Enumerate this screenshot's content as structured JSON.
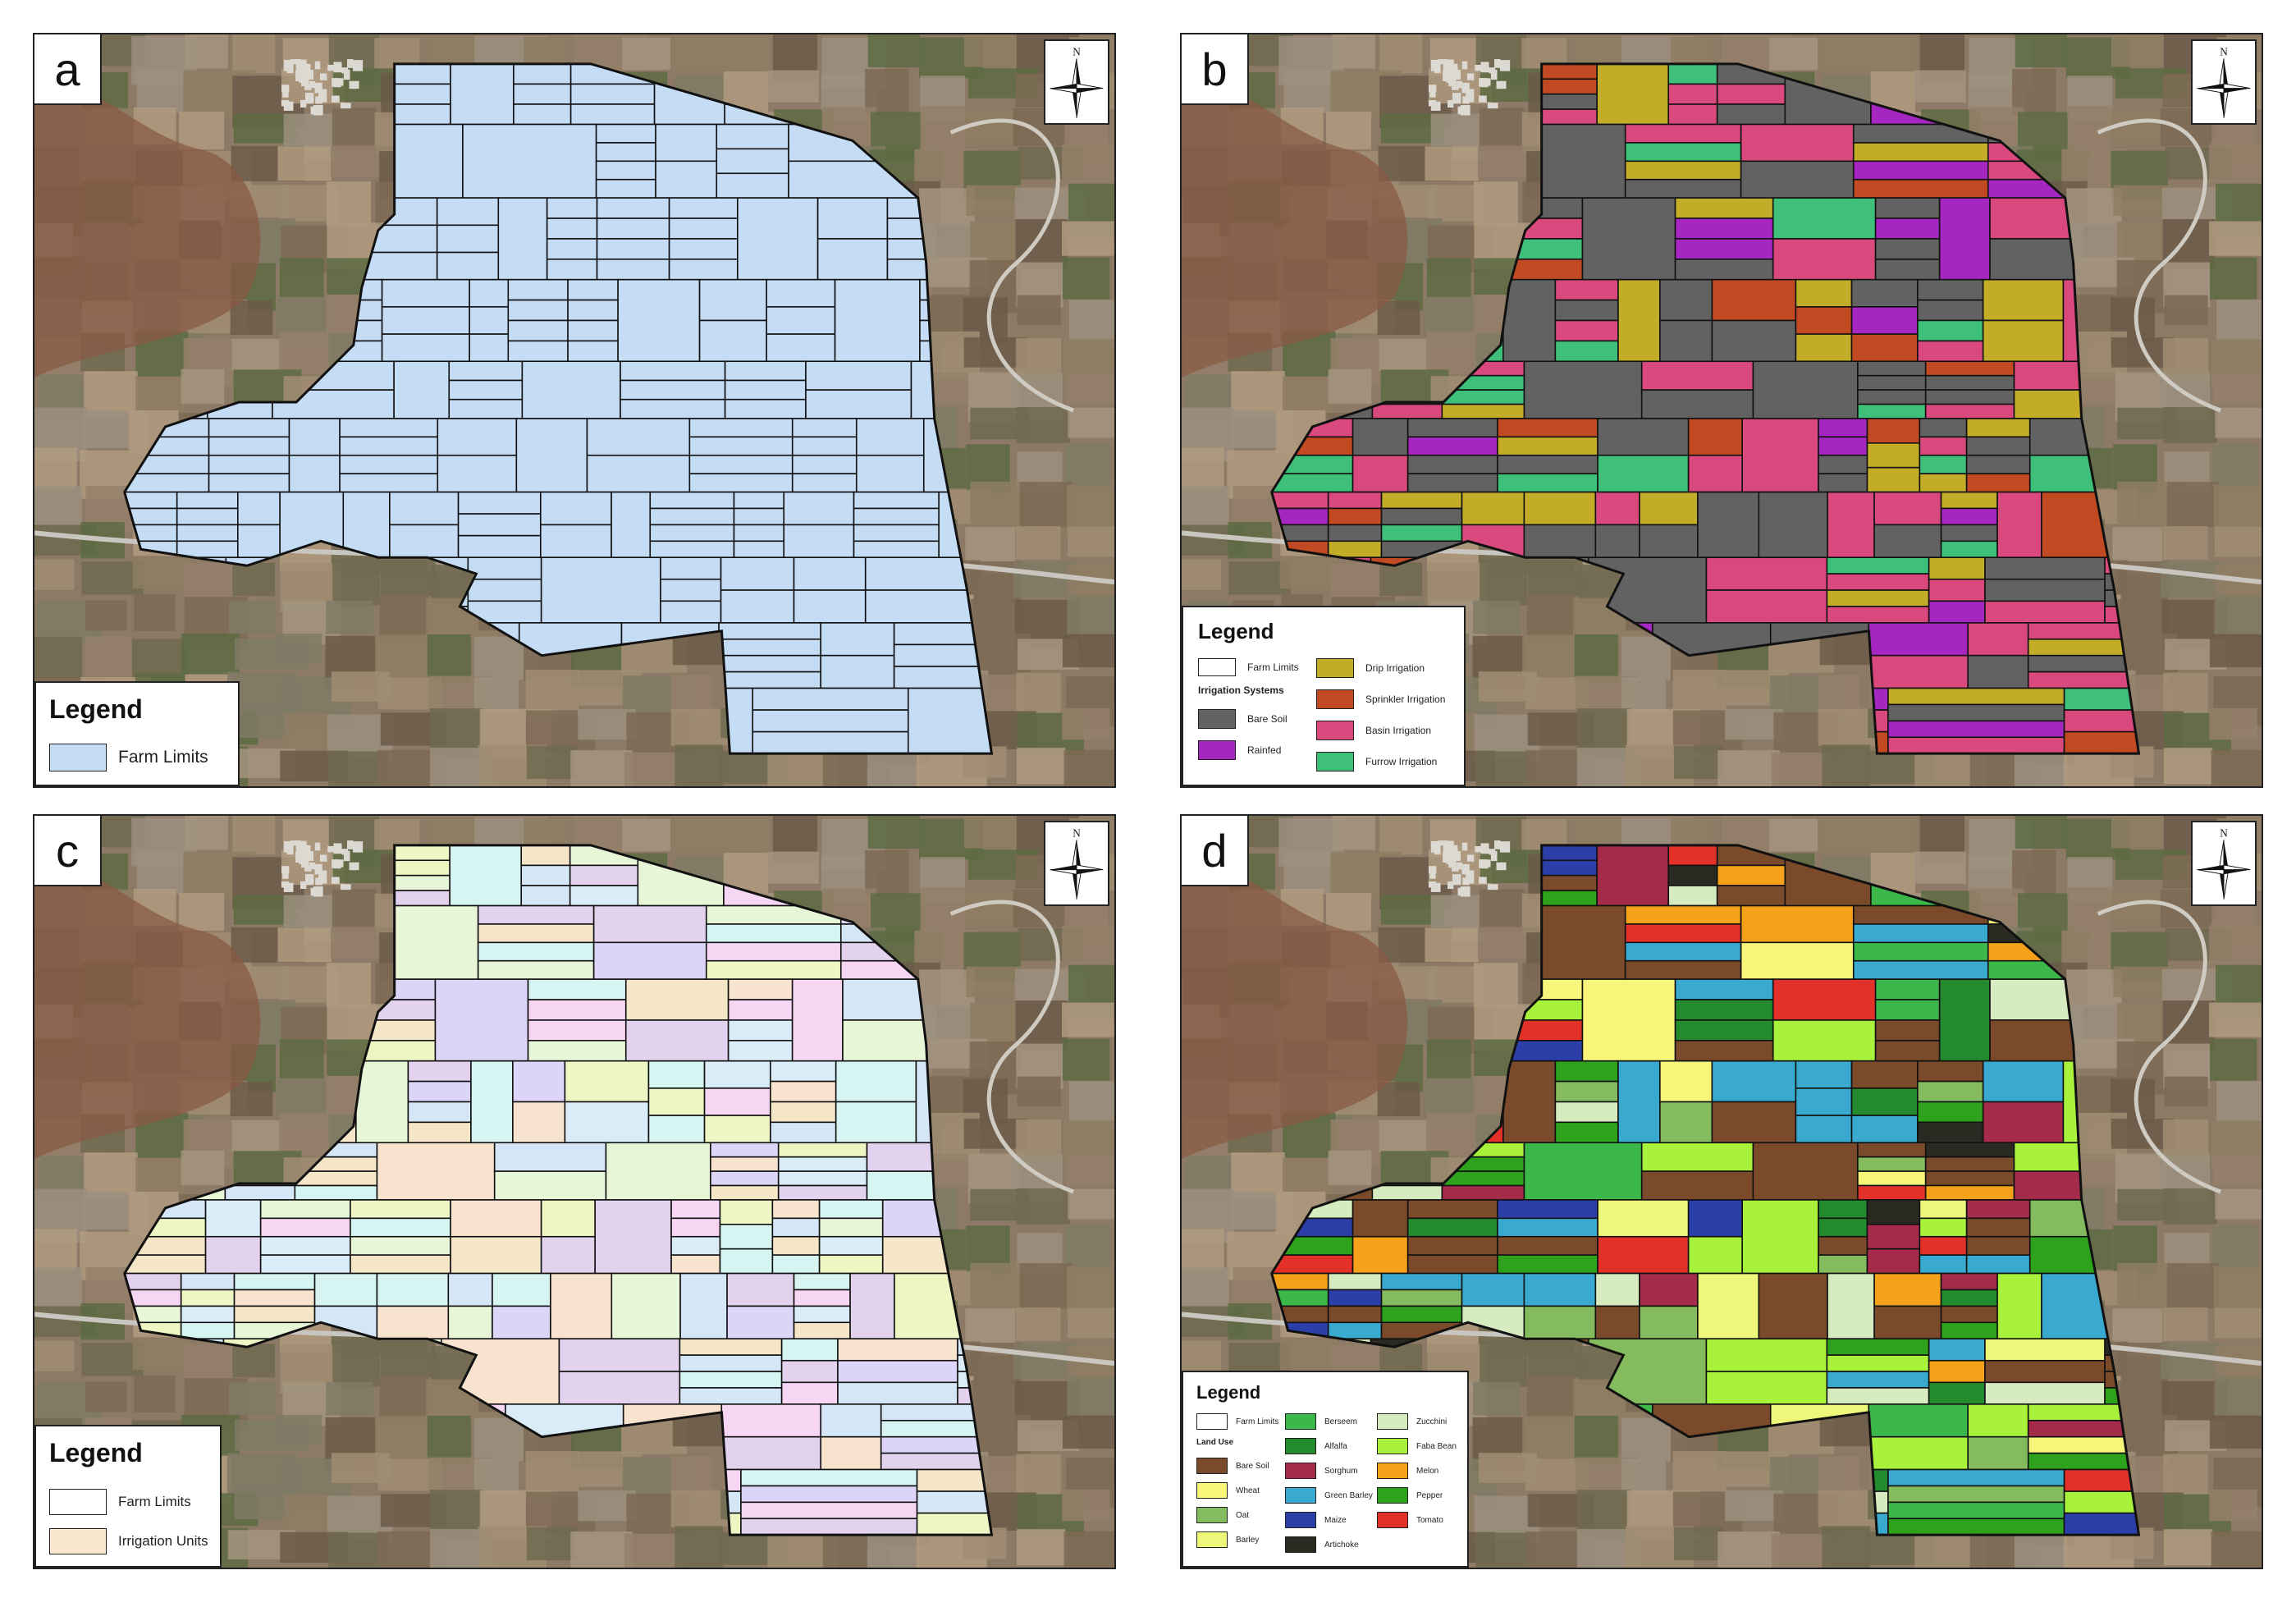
{
  "panels": [
    {
      "id": "a",
      "label": "a",
      "north": "N",
      "legend": {
        "title": "Legend",
        "items": [
          {
            "label": "Farm Limits",
            "color": "#c5dcf5"
          }
        ]
      }
    },
    {
      "id": "b",
      "label": "b",
      "north": "N",
      "legend": {
        "title": "Legend",
        "farm_limits": "Farm Limits",
        "section": "Irrigation Systems",
        "items": [
          {
            "label": "Bare Soil",
            "color": "#626262"
          },
          {
            "label": "Rainfed",
            "color": "#a626c2"
          },
          {
            "label": "Drip Irrigation",
            "color": "#c2ac28"
          },
          {
            "label": "Sprinkler Irrigation",
            "color": "#c24a22"
          },
          {
            "label": "Basin Irrigation",
            "color": "#d9497e"
          },
          {
            "label": "Furrow Irrigation",
            "color": "#3fc07a"
          }
        ]
      }
    },
    {
      "id": "c",
      "label": "c",
      "north": "N",
      "legend": {
        "title": "Legend",
        "items": [
          {
            "label": "Farm Limits",
            "color": "#ffffff"
          },
          {
            "label": "Irrigation Units",
            "color": "#f9e7cf"
          }
        ]
      }
    },
    {
      "id": "d",
      "label": "d",
      "north": "N",
      "legend": {
        "title": "Legend",
        "farm_limits": "Farm Limits",
        "section": "Land Use",
        "items": [
          {
            "label": "Bare Soil",
            "color": "#7b4a2a"
          },
          {
            "label": "Wheat",
            "color": "#f7f57a"
          },
          {
            "label": "Oat",
            "color": "#84bb5e"
          },
          {
            "label": "Barley",
            "color": "#eef77a"
          },
          {
            "label": "Berseem",
            "color": "#3cb84a"
          },
          {
            "label": "Alfalfa",
            "color": "#238a2e"
          },
          {
            "label": "Sorghum",
            "color": "#a52b4a"
          },
          {
            "label": "Green Barley",
            "color": "#3aa9cf"
          },
          {
            "label": "Maize",
            "color": "#2c3ea8"
          },
          {
            "label": "Artichoke",
            "color": "#2a2a22"
          },
          {
            "label": "Zucchini",
            "color": "#d6ebc0"
          },
          {
            "label": "Faba Bean",
            "color": "#a8f23c"
          },
          {
            "label": "Melon",
            "color": "#f5a21a"
          },
          {
            "label": "Pepper",
            "color": "#2ea21c"
          },
          {
            "label": "Tomato",
            "color": "#e3312a"
          }
        ]
      }
    }
  ]
}
